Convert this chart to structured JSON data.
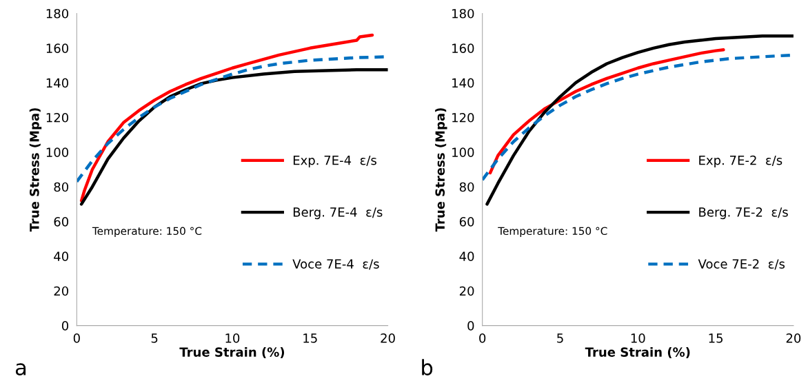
{
  "chart_data": [
    {
      "type": "line",
      "xlabel": "True Strain (%)",
      "ylabel": "True Stress (Mpa)",
      "xlim": [
        0,
        20
      ],
      "ylim": [
        0,
        180
      ],
      "xticks": [
        0,
        5,
        10,
        15,
        20
      ],
      "yticks": [
        0,
        20,
        40,
        60,
        80,
        100,
        120,
        140,
        160,
        180
      ],
      "grid": false,
      "legend": "right",
      "annotations": [
        "Temperature: 150 °C",
        "a"
      ],
      "series": [
        {
          "name": "Exp. 7E-4  ε/s",
          "color": "#ff0000",
          "line_style": "solid",
          "x": [
            0.3,
            0.5,
            1,
            2,
            3,
            4,
            5,
            6,
            7,
            8,
            9,
            10,
            11,
            12,
            13,
            14,
            15,
            16,
            17,
            18,
            18.2,
            19
          ],
          "values": [
            72,
            78,
            90,
            106,
            117,
            124,
            130,
            135,
            139,
            142.5,
            145.5,
            148.5,
            151,
            153.5,
            156,
            158,
            160,
            161.5,
            163,
            164.5,
            166.5,
            167.5
          ]
        },
        {
          "name": "Berg. 7E-4  ε/s",
          "color": "#000000",
          "line_style": "solid",
          "x": [
            0.3,
            1,
            2,
            3,
            4,
            5,
            6,
            7,
            8,
            9,
            10,
            12,
            14,
            16,
            18,
            20
          ],
          "values": [
            70,
            80,
            96,
            108,
            118,
            126,
            132,
            136,
            139.5,
            141.5,
            143,
            145,
            146.5,
            147,
            147.5,
            147.5
          ]
        },
        {
          "name": "Voce 7E-4  ε/s",
          "color": "#0070c0",
          "line_style": "dashed",
          "x": [
            0,
            1,
            2,
            3,
            4,
            5,
            6,
            7,
            8,
            9,
            10,
            11,
            12,
            13,
            14,
            15,
            16,
            17,
            18,
            20
          ],
          "values": [
            83,
            95,
            105,
            113,
            120,
            126,
            131,
            135,
            139,
            142,
            145,
            147.5,
            149.5,
            151,
            152,
            153,
            153.5,
            154,
            154.5,
            155
          ]
        }
      ]
    },
    {
      "type": "line",
      "xlabel": "True Strain (%)",
      "ylabel": "True Stress (Mpa)",
      "xlim": [
        0,
        20
      ],
      "ylim": [
        0,
        180
      ],
      "xticks": [
        0,
        5,
        10,
        15,
        20
      ],
      "yticks": [
        0,
        20,
        40,
        60,
        80,
        100,
        120,
        140,
        160,
        180
      ],
      "grid": false,
      "legend": "right",
      "annotations": [
        "Temperature: 150 °C",
        "b"
      ],
      "series": [
        {
          "name": "Exp. 7E-2  ε/s",
          "color": "#ff0000",
          "line_style": "solid",
          "x": [
            0.5,
            1,
            2,
            3,
            4,
            5,
            6,
            7,
            8,
            9,
            10,
            11,
            12,
            13,
            14,
            15,
            15.5
          ],
          "values": [
            88,
            98,
            110,
            118,
            125,
            130,
            135,
            139,
            142.5,
            145.5,
            148.5,
            151,
            153,
            155,
            157,
            158.5,
            159
          ]
        },
        {
          "name": "Berg. 7E-2  ε/s",
          "color": "#000000",
          "line_style": "solid",
          "x": [
            0.3,
            1,
            2,
            3,
            4,
            5,
            6,
            7,
            8,
            9,
            10,
            11,
            12,
            13,
            14,
            15,
            16,
            17,
            18,
            20
          ],
          "values": [
            70,
            82,
            98,
            112,
            123,
            132,
            140,
            146,
            151,
            154.5,
            157.5,
            160,
            162,
            163.5,
            164.5,
            165.5,
            166,
            166.5,
            167,
            167
          ]
        },
        {
          "name": "Voce 7E-2  ε/s",
          "color": "#0070c0",
          "line_style": "dashed",
          "x": [
            0,
            1,
            2,
            3,
            4,
            5,
            6,
            7,
            8,
            9,
            10,
            11,
            12,
            13,
            14,
            15,
            16,
            17,
            18,
            20
          ],
          "values": [
            84,
            96,
            106,
            114,
            121,
            127,
            132,
            136,
            139.5,
            142.5,
            145,
            147,
            149,
            150.5,
            152,
            153,
            154,
            154.5,
            155,
            156
          ]
        }
      ]
    }
  ]
}
